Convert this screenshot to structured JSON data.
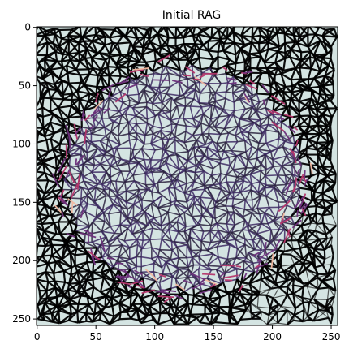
{
  "figure": {
    "title": "Initial RAG",
    "x_ticks": [
      "0",
      "50",
      "100",
      "150",
      "200",
      "250"
    ],
    "y_ticks": [
      "0",
      "50",
      "100",
      "150",
      "200",
      "250"
    ],
    "colors": {
      "background": "#d4e4e2",
      "edge_dark": "#000000",
      "edge_mid": "#3d2a63",
      "edge_accent": "#b5366c",
      "edge_hot": "#f2b8a0"
    }
  }
}
